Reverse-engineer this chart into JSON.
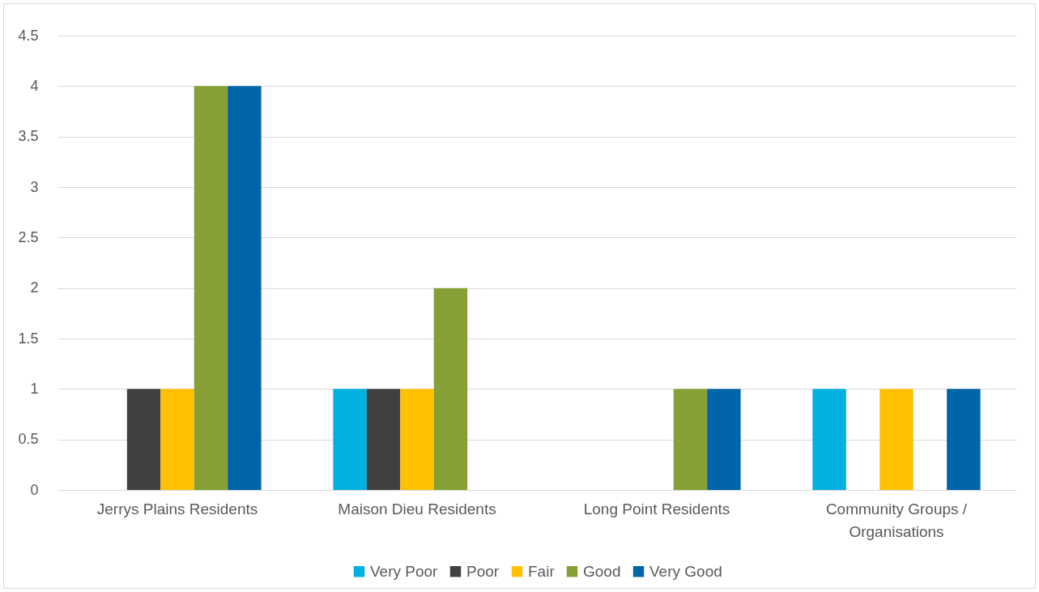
{
  "chart_data": {
    "type": "bar",
    "categories": [
      "Jerrys Plains Residents",
      "Maison Dieu Residents",
      "Long Point Residents",
      "Community Groups / Organisations"
    ],
    "series": [
      {
        "name": "Very Poor",
        "color": "#00b0e0",
        "values": [
          0,
          1,
          0,
          1
        ]
      },
      {
        "name": "Poor",
        "color": "#404040",
        "values": [
          1,
          1,
          0,
          0
        ]
      },
      {
        "name": "Fair",
        "color": "#ffc000",
        "values": [
          1,
          1,
          0,
          1
        ]
      },
      {
        "name": "Good",
        "color": "#86a036",
        "values": [
          4,
          2,
          1,
          0
        ]
      },
      {
        "name": "Very Good",
        "color": "#0064a8",
        "values": [
          4,
          0,
          1,
          1
        ]
      }
    ],
    "ylim": [
      0,
      4.5
    ],
    "yticks": [
      0,
      0.5,
      1,
      1.5,
      2,
      2.5,
      3,
      3.5,
      4,
      4.5
    ],
    "grid": "y",
    "legend": "bottom"
  }
}
